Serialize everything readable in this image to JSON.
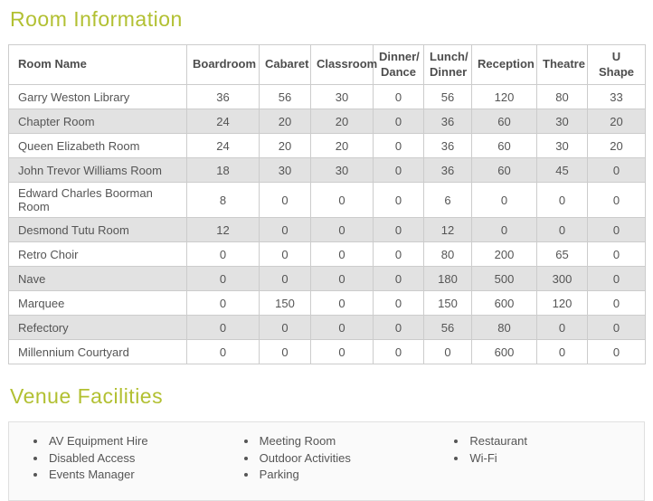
{
  "page": {
    "room_info_title": "Room Information",
    "facilities_title": "Venue Facilities",
    "accent_color": "#b2c032"
  },
  "table": {
    "columns": [
      "Room Name",
      "Boardroom",
      "Cabaret",
      "Classroom",
      "Dinner/ Dance",
      "Lunch/ Dinner",
      "Reception",
      "Theatre",
      "U Shape"
    ],
    "rows": [
      {
        "name": "Garry Weston Library",
        "values": [
          36,
          56,
          30,
          0,
          56,
          120,
          80,
          33
        ]
      },
      {
        "name": "Chapter Room",
        "values": [
          24,
          20,
          20,
          0,
          36,
          60,
          30,
          20
        ]
      },
      {
        "name": "Queen Elizabeth Room",
        "values": [
          24,
          20,
          20,
          0,
          36,
          60,
          30,
          20
        ]
      },
      {
        "name": "John Trevor Williams Room",
        "values": [
          18,
          30,
          30,
          0,
          36,
          60,
          45,
          0
        ]
      },
      {
        "name": "Edward Charles Boorman Room",
        "values": [
          8,
          0,
          0,
          0,
          6,
          0,
          0,
          0
        ]
      },
      {
        "name": "Desmond Tutu Room",
        "values": [
          12,
          0,
          0,
          0,
          12,
          0,
          0,
          0
        ]
      },
      {
        "name": "Retro Choir",
        "values": [
          0,
          0,
          0,
          0,
          80,
          200,
          65,
          0
        ]
      },
      {
        "name": "Nave",
        "values": [
          0,
          0,
          0,
          0,
          180,
          500,
          300,
          0
        ]
      },
      {
        "name": "Marquee",
        "values": [
          0,
          150,
          0,
          0,
          150,
          600,
          120,
          0
        ]
      },
      {
        "name": "Refectory",
        "values": [
          0,
          0,
          0,
          0,
          56,
          80,
          0,
          0
        ]
      },
      {
        "name": "Millennium Courtyard",
        "values": [
          0,
          0,
          0,
          0,
          0,
          600,
          0,
          0
        ]
      }
    ]
  },
  "facilities": {
    "columns": [
      [
        "AV Equipment Hire",
        "Disabled Access",
        "Events Manager"
      ],
      [
        "Meeting Room",
        "Outdoor Activities",
        "Parking"
      ],
      [
        "Restaurant",
        "Wi-Fi"
      ]
    ]
  }
}
